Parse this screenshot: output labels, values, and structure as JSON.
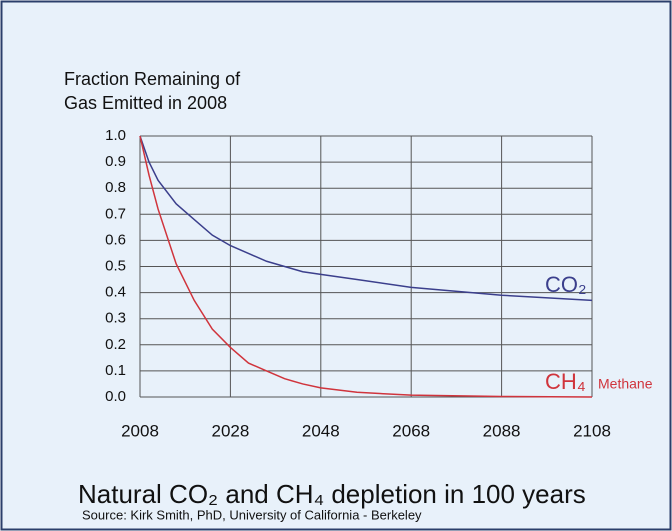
{
  "chart_data": {
    "type": "line",
    "y_label": [
      "Fraction Remaining of",
      "Gas Emitted in 2008"
    ],
    "title": "Natural CO₂ and CH₄ depletion in 100 years",
    "source": "Source:  Kirk Smith, PhD, University of California - Berkeley",
    "x": [
      2008,
      2010,
      2012,
      2016,
      2020,
      2024,
      2028,
      2032,
      2036,
      2040,
      2044,
      2048,
      2056,
      2068,
      2088,
      2108
    ],
    "series": [
      {
        "name": "CO₂",
        "color": "#3b3f8c",
        "values": [
          1.0,
          0.9,
          0.83,
          0.74,
          0.68,
          0.62,
          0.58,
          0.55,
          0.52,
          0.5,
          0.48,
          0.47,
          0.45,
          0.42,
          0.39,
          0.37
        ]
      },
      {
        "name": "CH₄",
        "color": "#d0343c",
        "annotation": "Methane",
        "values": [
          1.0,
          0.85,
          0.72,
          0.51,
          0.37,
          0.26,
          0.19,
          0.13,
          0.1,
          0.07,
          0.05,
          0.035,
          0.018,
          0.007,
          0.002,
          0.0
        ]
      }
    ],
    "xlim": [
      2008,
      2108
    ],
    "xticks": [
      2008,
      2028,
      2048,
      2068,
      2088,
      2108
    ],
    "ylim": [
      0,
      1
    ],
    "yticks": [
      {
        "value": 0,
        "label": "0.0"
      },
      0.1,
      0.2,
      0.3,
      0.4,
      0.5,
      0.6,
      0.7,
      0.8,
      0.9,
      {
        "value": 1,
        "label": "1.0"
      }
    ],
    "grid": true
  }
}
